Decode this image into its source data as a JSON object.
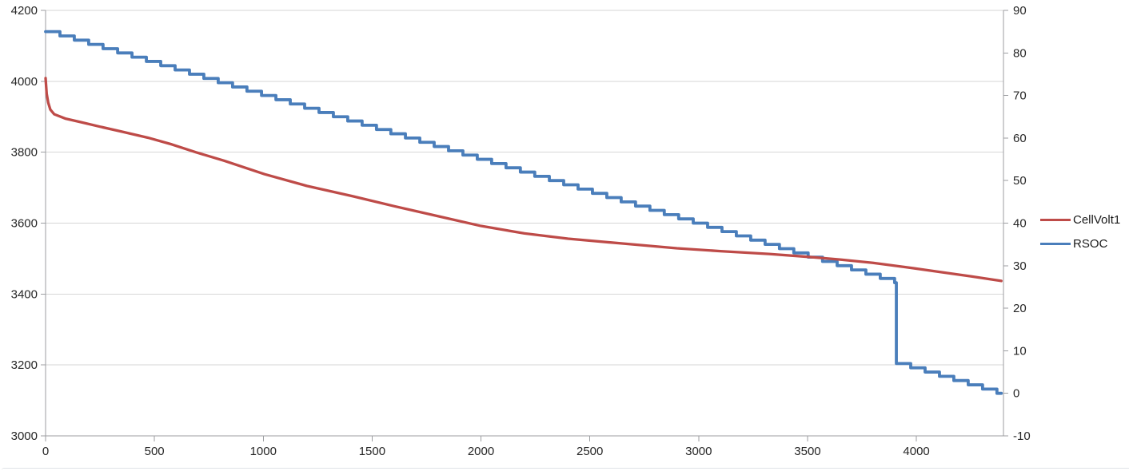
{
  "chart_data": {
    "type": "line",
    "title": "",
    "xlabel": "",
    "ylabel_left": "",
    "ylabel_right": "",
    "grid": "horizontal-major",
    "legend_position": "right",
    "style": {
      "background": "#FFFFFF",
      "grid_color": "#D6D6D6",
      "axis_color": "#9C9EA1",
      "text_color": "#262626"
    },
    "x_axis": {
      "min": 0,
      "max": 4400,
      "tick_step": 500,
      "tick_labels": [
        "0",
        "500",
        "1000",
        "1500",
        "2000",
        "2500",
        "3000",
        "3500",
        "4000"
      ]
    },
    "y_axis_left": {
      "min": 3000,
      "max": 4200,
      "tick_step": 200,
      "tick_labels": [
        "4200",
        "4000",
        "3800",
        "3600",
        "3400",
        "3200",
        "3000"
      ]
    },
    "y_axis_right": {
      "min": -10,
      "max": 90,
      "tick_step": 10,
      "tick_labels": [
        "90",
        "80",
        "70",
        "60",
        "50",
        "40",
        "30",
        "20",
        "10",
        "0",
        "-10"
      ]
    },
    "series": [
      {
        "name": "CellVolt1",
        "axis": "left",
        "color": "#BE4B48",
        "interpolation": "linear",
        "points": [
          [
            0,
            4009
          ],
          [
            5,
            3965
          ],
          [
            12,
            3940
          ],
          [
            22,
            3920
          ],
          [
            40,
            3907
          ],
          [
            90,
            3895
          ],
          [
            160,
            3885
          ],
          [
            250,
            3872
          ],
          [
            350,
            3858
          ],
          [
            470,
            3841
          ],
          [
            580,
            3822
          ],
          [
            690,
            3800
          ],
          [
            820,
            3776
          ],
          [
            1006,
            3738
          ],
          [
            1200,
            3705
          ],
          [
            1410,
            3676
          ],
          [
            1600,
            3648
          ],
          [
            1800,
            3620
          ],
          [
            2000,
            3592
          ],
          [
            2200,
            3571
          ],
          [
            2400,
            3556
          ],
          [
            2660,
            3542
          ],
          [
            2900,
            3529
          ],
          [
            3100,
            3521
          ],
          [
            3323,
            3513
          ],
          [
            3500,
            3505
          ],
          [
            3654,
            3497
          ],
          [
            3800,
            3488
          ],
          [
            3950,
            3476
          ],
          [
            4100,
            3463
          ],
          [
            4250,
            3450
          ],
          [
            4390,
            3437
          ]
        ]
      },
      {
        "name": "RSOC",
        "axis": "right",
        "color": "#4A7EBB",
        "interpolation": "step-after",
        "points": [
          [
            0,
            85
          ],
          [
            66,
            84
          ],
          [
            132,
            83
          ],
          [
            198,
            82
          ],
          [
            264,
            81
          ],
          [
            331,
            80
          ],
          [
            397,
            79
          ],
          [
            463,
            78
          ],
          [
            529,
            77
          ],
          [
            595,
            76
          ],
          [
            661,
            75
          ],
          [
            727,
            74
          ],
          [
            793,
            73
          ],
          [
            859,
            72
          ],
          [
            925,
            71
          ],
          [
            992,
            70
          ],
          [
            1058,
            69
          ],
          [
            1124,
            68
          ],
          [
            1190,
            67
          ],
          [
            1256,
            66
          ],
          [
            1322,
            65
          ],
          [
            1388,
            64
          ],
          [
            1454,
            63
          ],
          [
            1520,
            62
          ],
          [
            1586,
            61
          ],
          [
            1653,
            60
          ],
          [
            1719,
            59
          ],
          [
            1785,
            58
          ],
          [
            1851,
            57
          ],
          [
            1917,
            56
          ],
          [
            1983,
            55
          ],
          [
            2049,
            54
          ],
          [
            2115,
            53
          ],
          [
            2181,
            52
          ],
          [
            2247,
            51
          ],
          [
            2314,
            50
          ],
          [
            2380,
            49
          ],
          [
            2446,
            48
          ],
          [
            2512,
            47
          ],
          [
            2578,
            46
          ],
          [
            2644,
            45
          ],
          [
            2710,
            44
          ],
          [
            2776,
            43
          ],
          [
            2842,
            42
          ],
          [
            2908,
            41
          ],
          [
            2975,
            40
          ],
          [
            3041,
            39
          ],
          [
            3107,
            38
          ],
          [
            3173,
            37
          ],
          [
            3239,
            36
          ],
          [
            3305,
            35
          ],
          [
            3371,
            34
          ],
          [
            3437,
            33
          ],
          [
            3503,
            32
          ],
          [
            3569,
            31
          ],
          [
            3636,
            30
          ],
          [
            3702,
            29
          ],
          [
            3768,
            28
          ],
          [
            3834,
            27
          ],
          [
            3900,
            26
          ],
          [
            3908,
            7
          ],
          [
            3974,
            6
          ],
          [
            4040,
            5
          ],
          [
            4106,
            4
          ],
          [
            4172,
            3
          ],
          [
            4238,
            2
          ],
          [
            4304,
            1
          ],
          [
            4370,
            0
          ],
          [
            4390,
            0
          ]
        ]
      }
    ]
  }
}
